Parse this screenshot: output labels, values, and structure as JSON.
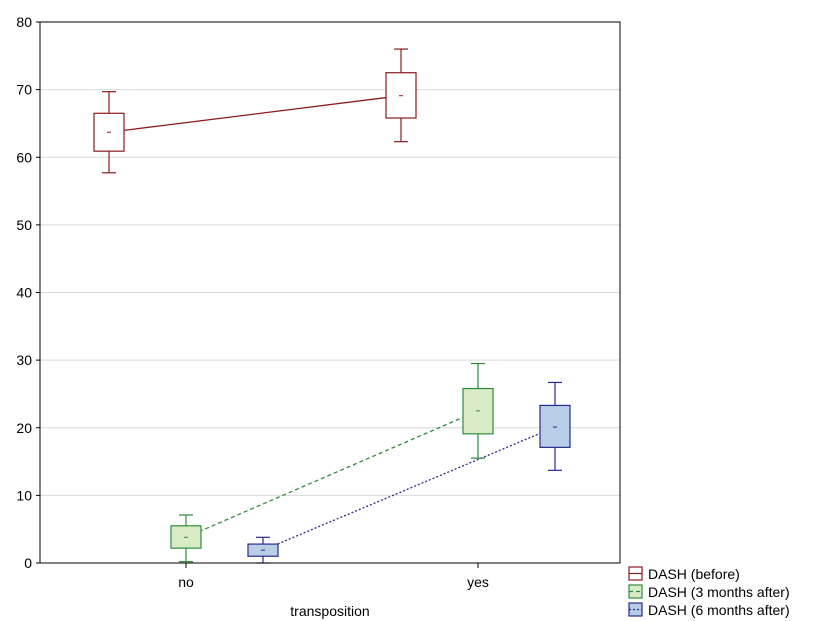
{
  "chart_data": {
    "type": "box",
    "title": "",
    "xlabel": "transposition",
    "ylabel": "",
    "categories": [
      "no",
      "yes"
    ],
    "ylim": [
      0,
      80
    ],
    "yticks": [
      0,
      10,
      20,
      30,
      40,
      50,
      60,
      70,
      80
    ],
    "grid": true,
    "legend_position": "bottom-right",
    "series": [
      {
        "name": "DASH (before)",
        "color": "#8b1a1a",
        "fill": "#ffffff",
        "line_style": "solid",
        "boxes": [
          {
            "category": "no",
            "whisker_low": 57.7,
            "q1": 60.9,
            "mean": 63.7,
            "q3": 66.5,
            "whisker_high": 69.7
          },
          {
            "category": "yes",
            "whisker_low": 62.3,
            "q1": 65.8,
            "mean": 69.1,
            "q3": 72.5,
            "whisker_high": 76.0
          }
        ]
      },
      {
        "name": "DASH (3 months after)",
        "color": "#2e8b3c",
        "fill": "#d9ebc4",
        "line_style": "dashed",
        "boxes": [
          {
            "category": "no",
            "whisker_low": 0.2,
            "q1": 2.2,
            "mean": 3.8,
            "q3": 5.5,
            "whisker_high": 7.1
          },
          {
            "category": "yes",
            "whisker_low": 15.5,
            "q1": 19.1,
            "mean": 22.5,
            "q3": 25.8,
            "whisker_high": 29.5
          }
        ]
      },
      {
        "name": "DASH (6 months after)",
        "color": "#2a2a8c",
        "fill": "#b8cde6",
        "line_style": "dotted",
        "boxes": [
          {
            "category": "no",
            "whisker_low": 0.0,
            "q1": 1.0,
            "mean": 1.9,
            "q3": 2.8,
            "whisker_high": 3.8
          },
          {
            "category": "yes",
            "whisker_low": 13.7,
            "q1": 17.1,
            "mean": 20.1,
            "q3": 23.3,
            "whisker_high": 26.7
          }
        ]
      }
    ]
  }
}
